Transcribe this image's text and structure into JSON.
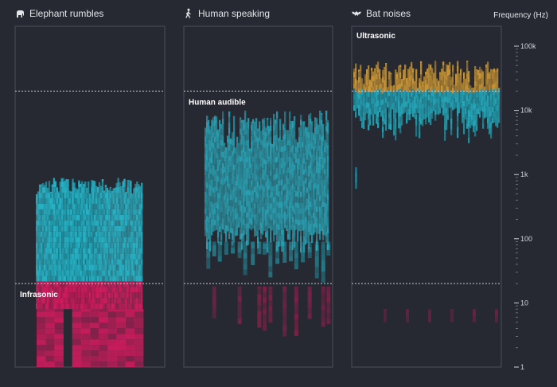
{
  "chart_data": {
    "type": "heatmap",
    "y_axis": {
      "label": "Frequency (Hz)",
      "scale": "log",
      "ylim": [
        1,
        150000
      ],
      "ticks": [
        {
          "value": 100000,
          "label": "100k"
        },
        {
          "value": 10000,
          "label": "10k"
        },
        {
          "value": 1000,
          "label": "1k"
        },
        {
          "value": 100,
          "label": "100"
        },
        {
          "value": 10,
          "label": "10"
        },
        {
          "value": 1,
          "label": "1"
        }
      ]
    },
    "thresholds": [
      {
        "name": "Infrasonic",
        "value": 20
      },
      {
        "name": "Ultrasonic",
        "value": 20000
      }
    ],
    "region_labels": {
      "infrasonic": "Infrasonic",
      "human_audible": "Human audible",
      "ultrasonic": "Ultrasonic"
    },
    "colors": {
      "infrasonic": "#d81b60",
      "audible": "#26b9cc",
      "ultrasonic": "#e0a63a",
      "background": "#262932",
      "panel_border": "#4a4e59"
    },
    "panels": [
      {
        "title": "Elephant rumbles",
        "icon": "elephant-icon",
        "freq_range_hz": [
          1,
          900
        ]
      },
      {
        "title": "Human speaking",
        "icon": "person-walking-icon",
        "freq_range_hz": [
          3,
          10000
        ]
      },
      {
        "title": "Bat noises",
        "icon": "bat-icon",
        "freq_range_hz": [
          20,
          60000
        ]
      }
    ]
  }
}
